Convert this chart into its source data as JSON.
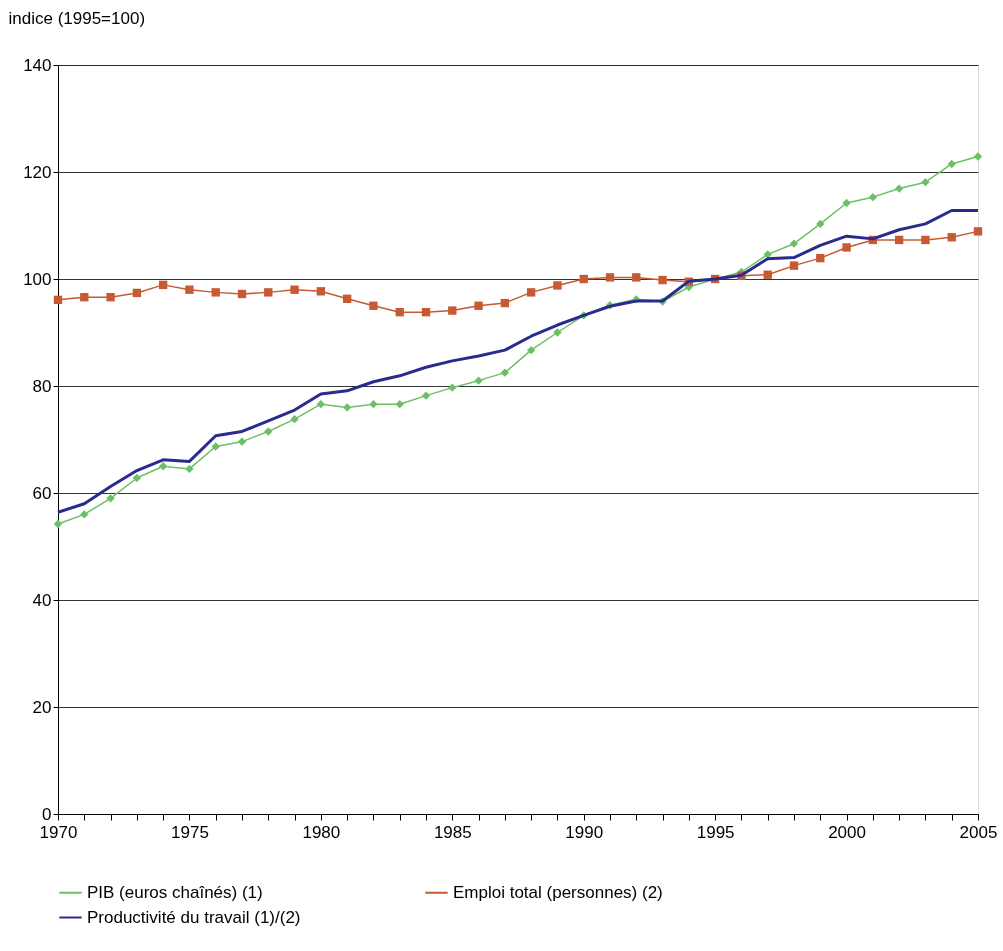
{
  "chart_data": {
    "type": "line",
    "ylabel": "indice (1995=100)",
    "x": [
      1970,
      1971,
      1972,
      1973,
      1974,
      1975,
      1976,
      1977,
      1978,
      1979,
      1980,
      1981,
      1982,
      1983,
      1984,
      1985,
      1986,
      1987,
      1988,
      1989,
      1990,
      1991,
      1992,
      1993,
      1994,
      1995,
      1996,
      1997,
      1998,
      1999,
      2000,
      2001,
      2002,
      2003,
      2004,
      2005
    ],
    "series": [
      {
        "name": "PIB  (euros chaînés) (1)",
        "color": "#6dbf67",
        "marker": "diamond",
        "values": [
          54.2,
          56,
          59,
          62.8,
          65,
          64.5,
          68.7,
          69.6,
          71.5,
          73.8,
          76.6,
          76,
          76.6,
          76.6,
          78.2,
          79.7,
          81,
          82.5,
          86.7,
          90,
          93.2,
          95.1,
          96.2,
          95.8,
          98.5,
          100,
          101.3,
          104.6,
          106.6,
          110.3,
          114.2,
          115.3,
          116.9,
          118.1,
          121.5,
          122.9
        ]
      },
      {
        "name": "Emploi total (personnes) (2)",
        "color": "#c55a33",
        "marker": "square",
        "values": [
          96.1,
          96.6,
          96.6,
          97.4,
          98.9,
          98,
          97.5,
          97.2,
          97.5,
          98,
          97.7,
          96.3,
          95,
          93.8,
          93.8,
          94.1,
          95,
          95.5,
          97.5,
          98.8,
          100,
          100.3,
          100.3,
          99.8,
          99.5,
          100,
          100.6,
          100.8,
          102.5,
          103.9,
          105.9,
          107.3,
          107.3,
          107.3,
          107.8,
          108.9
        ]
      },
      {
        "name": "Productivité du travail (1)/(2)",
        "color": "#2a2a8f",
        "marker": "none",
        "values": [
          56.4,
          58,
          61.2,
          64.2,
          66.2,
          65.9,
          70.7,
          71.5,
          73.5,
          75.5,
          78.5,
          79.1,
          80.8,
          81.9,
          83.5,
          84.7,
          85.6,
          86.7,
          89.3,
          91.4,
          93.2,
          94.9,
          95.9,
          95.9,
          99.6,
          100,
          100.7,
          103.8,
          104,
          106.3,
          108,
          107.5,
          109.2,
          110.3,
          112.8,
          112.8
        ]
      }
    ],
    "xlim": [
      1970,
      2005
    ],
    "xticks": [
      1970,
      {
        "value": 1971,
        "label": null
      },
      {
        "value": 1972,
        "label": null
      },
      {
        "value": 1973,
        "label": null
      },
      {
        "value": 1974,
        "label": null
      },
      1975,
      {
        "value": 1976,
        "label": null
      },
      {
        "value": 1977,
        "label": null
      },
      {
        "value": 1978,
        "label": null
      },
      {
        "value": 1979,
        "label": null
      },
      1980,
      {
        "value": 1981,
        "label": null
      },
      {
        "value": 1982,
        "label": null
      },
      {
        "value": 1983,
        "label": null
      },
      {
        "value": 1984,
        "label": null
      },
      1985,
      {
        "value": 1986,
        "label": null
      },
      {
        "value": 1987,
        "label": null
      },
      {
        "value": 1988,
        "label": null
      },
      {
        "value": 1989,
        "label": null
      },
      1990,
      {
        "value": 1991,
        "label": null
      },
      {
        "value": 1992,
        "label": null
      },
      {
        "value": 1993,
        "label": null
      },
      {
        "value": 1994,
        "label": null
      },
      1995,
      {
        "value": 1996,
        "label": null
      },
      {
        "value": 1997,
        "label": null
      },
      {
        "value": 1998,
        "label": null
      },
      {
        "value": 1999,
        "label": null
      },
      2000,
      {
        "value": 2001,
        "label": null
      },
      {
        "value": 2002,
        "label": null
      },
      {
        "value": 2003,
        "label": null
      },
      {
        "value": 2004,
        "label": null
      },
      2005
    ],
    "ylim": [
      0,
      140
    ],
    "yticks": [
      0,
      20,
      40,
      60,
      80,
      100,
      120,
      140
    ],
    "grid": "y",
    "legend": "bottom",
    "line_style": "solid"
  }
}
